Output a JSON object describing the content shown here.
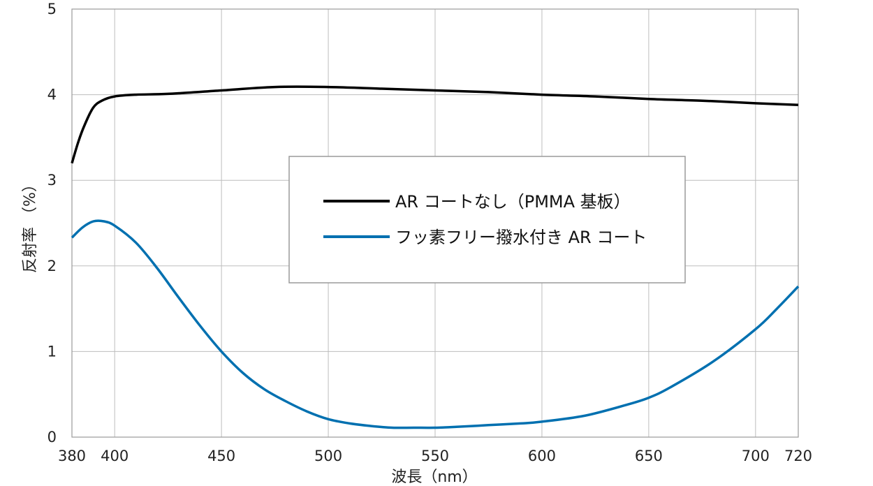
{
  "chart_data": {
    "type": "line",
    "xlabel": "波長（nm）",
    "ylabel": "反射率 （%）",
    "xlim": [
      380,
      720
    ],
    "ylim": [
      0,
      5
    ],
    "x_ticks": [
      380,
      400,
      450,
      500,
      550,
      600,
      650,
      700,
      720
    ],
    "y_ticks": [
      0,
      1,
      2,
      3,
      4,
      5
    ],
    "grid": true,
    "legend_position": "center",
    "series": [
      {
        "name": "AR コートなし（PMMA 基板）",
        "color": "#000000",
        "points": [
          [
            380,
            3.2
          ],
          [
            383,
            3.45
          ],
          [
            386,
            3.65
          ],
          [
            390,
            3.85
          ],
          [
            394,
            3.93
          ],
          [
            400,
            3.98
          ],
          [
            410,
            4.0
          ],
          [
            425,
            4.01
          ],
          [
            450,
            4.05
          ],
          [
            475,
            4.09
          ],
          [
            500,
            4.09
          ],
          [
            525,
            4.07
          ],
          [
            550,
            4.05
          ],
          [
            575,
            4.03
          ],
          [
            600,
            4.0
          ],
          [
            625,
            3.98
          ],
          [
            650,
            3.95
          ],
          [
            675,
            3.93
          ],
          [
            700,
            3.9
          ],
          [
            720,
            3.88
          ]
        ]
      },
      {
        "name": "フッ素フリー撥水付き AR コート",
        "color": "#0070b0",
        "points": [
          [
            380,
            2.33
          ],
          [
            385,
            2.45
          ],
          [
            390,
            2.52
          ],
          [
            395,
            2.52
          ],
          [
            400,
            2.47
          ],
          [
            410,
            2.27
          ],
          [
            420,
            1.97
          ],
          [
            430,
            1.63
          ],
          [
            440,
            1.3
          ],
          [
            450,
            1.0
          ],
          [
            460,
            0.75
          ],
          [
            470,
            0.56
          ],
          [
            480,
            0.42
          ],
          [
            490,
            0.3
          ],
          [
            500,
            0.21
          ],
          [
            510,
            0.16
          ],
          [
            520,
            0.13
          ],
          [
            530,
            0.11
          ],
          [
            540,
            0.11
          ],
          [
            550,
            0.11
          ],
          [
            560,
            0.12
          ],
          [
            575,
            0.14
          ],
          [
            590,
            0.16
          ],
          [
            600,
            0.18
          ],
          [
            620,
            0.25
          ],
          [
            640,
            0.38
          ],
          [
            650,
            0.46
          ],
          [
            660,
            0.58
          ],
          [
            680,
            0.88
          ],
          [
            700,
            1.26
          ],
          [
            710,
            1.5
          ],
          [
            720,
            1.76
          ]
        ]
      }
    ]
  }
}
